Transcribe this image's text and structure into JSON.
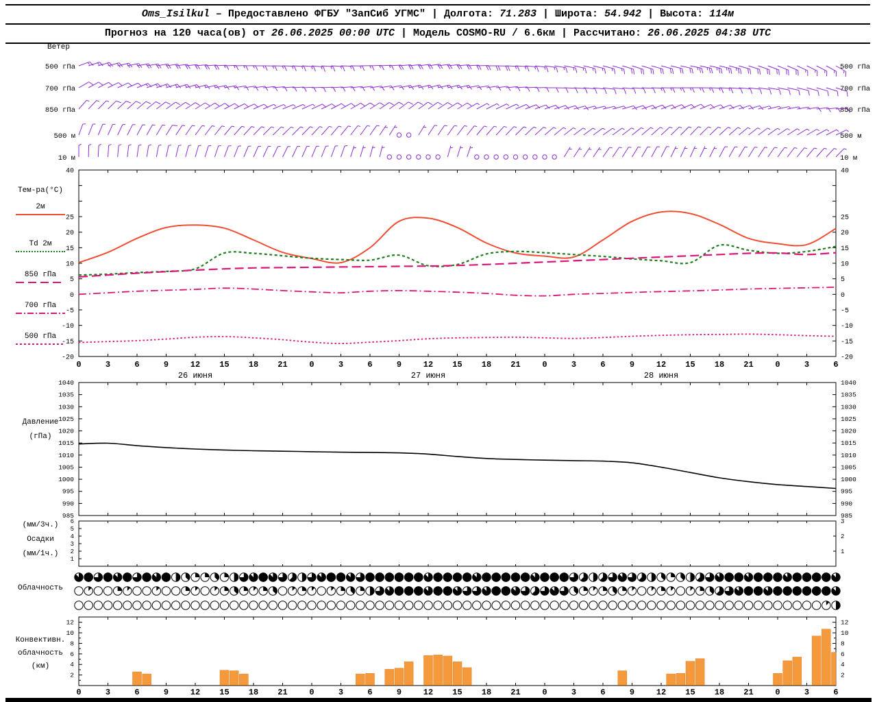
{
  "header": {
    "row1": [
      {
        "text": "Oms_Isilkul",
        "style": "italic"
      },
      {
        "text": " – Предоставлено ФГБУ \"ЗапСиб УГМС\"  |  Долгота: "
      },
      {
        "text": "71.283",
        "style": "italic"
      },
      {
        "text": "  |  Широта: "
      },
      {
        "text": "54.942",
        "style": "italic"
      },
      {
        "text": "  |  Высота: "
      },
      {
        "text": "114м",
        "style": "italic"
      }
    ],
    "row2": [
      {
        "text": "Прогноз на 120 часа(ов) от "
      },
      {
        "text": "26.06.2025 00:00 UTC",
        "style": "italic"
      },
      {
        "text": "  |  Модель "
      },
      {
        "text": "COSMO-RU / 6.6км"
      },
      {
        "text": "  |  Рассчитано: "
      },
      {
        "text": "26.06.2025 04:38 UTC",
        "style": "italic"
      }
    ]
  },
  "labels": {
    "wind_title": "Ветер",
    "temp_title": "Тем-ра(°C)",
    "pressure_title_1": "Давление",
    "pressure_title_2": "(гПа)",
    "precip_1": "(мм/3ч.)",
    "precip_2": "Осадки",
    "precip_3": "(мм/1ч.)",
    "cloud_title": "Облачность",
    "conv_1": "Конвективн.",
    "conv_2": "облачность",
    "conv_3": "(км)"
  },
  "time": {
    "hours": [
      0,
      3,
      6,
      9,
      12,
      15,
      18,
      21,
      24,
      27,
      30,
      33,
      36,
      39,
      42,
      45,
      48,
      51,
      54,
      57,
      60,
      63,
      66,
      69,
      72,
      75,
      78
    ],
    "hour_labels": [
      "0",
      "3",
      "6",
      "9",
      "12",
      "15",
      "18",
      "21",
      "0",
      "3",
      "6",
      "9",
      "12",
      "15",
      "18",
      "21",
      "0",
      "3",
      "6",
      "9",
      "12",
      "15",
      "18",
      "21",
      "0",
      "3",
      "6"
    ],
    "day_labels": [
      {
        "text": "26 июня",
        "t": 12
      },
      {
        "text": "27 июня",
        "t": 36
      },
      {
        "text": "28 июня",
        "t": 60
      }
    ]
  },
  "chart_data": [
    {
      "type": "wind-barbs",
      "title": "Ветер",
      "color": "#8a2fd2",
      "x_hours": [
        0,
        3,
        6,
        9,
        12,
        15,
        18,
        21,
        24,
        27,
        30,
        33,
        36,
        39,
        42,
        45,
        48,
        51,
        54,
        57,
        60,
        63,
        66,
        69,
        72,
        75,
        78
      ],
      "levels": [
        {
          "label": "500 гПа",
          "dir": [
            250,
            255,
            260,
            262,
            265,
            268,
            270,
            272,
            275,
            272,
            268,
            265,
            262,
            265,
            270,
            274,
            278,
            282,
            285,
            288,
            285,
            282,
            284,
            288,
            292,
            296,
            300
          ],
          "speed_ms": [
            18,
            20,
            22,
            22,
            20,
            18,
            18,
            16,
            15,
            16,
            18,
            20,
            22,
            22,
            20,
            18,
            16,
            15,
            18,
            20,
            22,
            24,
            25,
            22,
            20,
            18,
            18
          ]
        },
        {
          "label": "700 гПа",
          "dir": [
            240,
            244,
            248,
            252,
            256,
            260,
            263,
            266,
            268,
            265,
            262,
            258,
            256,
            258,
            262,
            266,
            270,
            274,
            277,
            274,
            271,
            270,
            273,
            277,
            281,
            285,
            288
          ],
          "speed_ms": [
            12,
            13,
            14,
            15,
            15,
            14,
            12,
            11,
            10,
            11,
            13,
            14,
            15,
            14,
            12,
            11,
            10,
            11,
            12,
            13,
            15,
            15,
            14,
            12,
            11,
            10,
            10
          ]
        },
        {
          "label": "850 гПа",
          "dir": [
            222,
            226,
            230,
            234,
            238,
            242,
            246,
            248,
            245,
            241,
            237,
            233,
            235,
            239,
            243,
            247,
            251,
            255,
            257,
            253,
            249,
            246,
            250,
            254,
            258,
            262,
            266
          ],
          "speed_ms": [
            8,
            9,
            10,
            11,
            12,
            11,
            9,
            8,
            9,
            10,
            11,
            12,
            10,
            9,
            8,
            9,
            10,
            9,
            8,
            10,
            11,
            12,
            10,
            9,
            8,
            9,
            10
          ]
        },
        {
          "label": "500 м",
          "dir": [
            200,
            204,
            208,
            212,
            216,
            220,
            224,
            226,
            223,
            219,
            215,
            211,
            213,
            217,
            221,
            225,
            229,
            233,
            235,
            231,
            227,
            224,
            228,
            232,
            236,
            240,
            244
          ],
          "speed_ms": [
            6,
            7,
            8,
            9,
            8,
            7,
            6,
            7,
            8,
            6,
            5,
            0,
            4,
            6,
            7,
            6,
            5,
            6,
            7,
            8,
            6,
            5,
            6,
            7,
            8,
            6,
            6
          ]
        },
        {
          "label": "10 м",
          "dir": [
            180,
            184,
            188,
            192,
            196,
            200,
            204,
            206,
            203,
            199,
            195,
            191,
            193,
            197,
            201,
            205,
            209,
            213,
            215,
            211,
            207,
            204,
            208,
            212,
            216,
            220,
            224
          ],
          "speed_ms": [
            4,
            5,
            5,
            6,
            5,
            4,
            4,
            5,
            5,
            4,
            3,
            0,
            0,
            3,
            0,
            0,
            0,
            3,
            4,
            5,
            4,
            3,
            4,
            5,
            5,
            4,
            4
          ]
        }
      ]
    },
    {
      "type": "line",
      "title": "Тем-ра(°C)",
      "ylim": [
        -20,
        40
      ],
      "yticks": [
        40,
        25,
        20,
        15,
        10,
        5,
        0,
        -5,
        -10,
        -15,
        -20
      ],
      "x_hours": [
        0,
        3,
        6,
        9,
        12,
        15,
        18,
        21,
        24,
        27,
        30,
        33,
        36,
        39,
        42,
        45,
        48,
        51,
        54,
        57,
        60,
        63,
        66,
        69,
        72,
        75,
        78
      ],
      "series": [
        {
          "name": "2м",
          "color": "#ef4e33",
          "dash": "solid",
          "width": 2,
          "values": [
            10.2,
            13.5,
            18,
            21.5,
            22.3,
            21.3,
            17.5,
            13.5,
            11.5,
            10.2,
            15,
            23.5,
            24.5,
            21.5,
            16.5,
            13.3,
            12.3,
            12,
            17.5,
            23.5,
            26.5,
            26,
            22.5,
            18,
            16.3,
            16,
            21.2
          ]
        },
        {
          "name": "Td 2м",
          "color": "#1e7d1e",
          "dash": "dot",
          "width": 2.2,
          "values": [
            6.2,
            6.5,
            7,
            7.4,
            8.2,
            13.3,
            13.2,
            12.4,
            11.6,
            11.2,
            11,
            12.6,
            9.2,
            9.6,
            13,
            13.8,
            13.4,
            12.8,
            12.2,
            11.4,
            10.8,
            10.2,
            15.8,
            14.2,
            13.2,
            13.8,
            15.4
          ]
        },
        {
          "name": "850 гПа",
          "color": "#d81677",
          "dash": "longdash",
          "width": 2.2,
          "values": [
            5.6,
            6.2,
            6.8,
            7.3,
            7.8,
            8.2,
            8.5,
            8.6,
            8.7,
            8.8,
            8.9,
            9,
            9.1,
            9.3,
            9.6,
            10,
            10.4,
            10.8,
            11.2,
            11.6,
            12,
            12.4,
            12.8,
            13.2,
            13.3,
            12.8,
            13.4
          ]
        },
        {
          "name": "700 гПа",
          "color": "#d81677",
          "dash": "dashdot",
          "width": 1.8,
          "values": [
            0,
            0.5,
            1,
            1.3,
            1.6,
            2,
            1.7,
            1.2,
            0.8,
            0.5,
            1,
            1.2,
            1,
            0.7,
            0.3,
            -0.3,
            -0.5,
            0,
            0.3,
            0.6,
            0.9,
            1.1,
            1.4,
            1.7,
            1.9,
            2.1,
            2.3
          ]
        },
        {
          "name": "500 гПа",
          "color": "#d81677",
          "dash": "dot2",
          "width": 1.8,
          "values": [
            -15.5,
            -15.2,
            -14.9,
            -14.4,
            -13.8,
            -13.6,
            -14,
            -14.6,
            -15.4,
            -15.8,
            -15.4,
            -14.9,
            -14.3,
            -14,
            -13.9,
            -13.8,
            -14,
            -14.2,
            -13.9,
            -13.5,
            -13.2,
            -13,
            -12.9,
            -12.8,
            -13,
            -13.3,
            -13.5
          ]
        }
      ]
    },
    {
      "type": "line",
      "title": "Давление (гПа)",
      "ylim": [
        985,
        1040
      ],
      "yticks": [
        1040,
        1035,
        1030,
        1025,
        1020,
        1015,
        1010,
        1005,
        1000,
        995,
        990,
        985
      ],
      "x_hours": [
        0,
        3,
        6,
        9,
        12,
        15,
        18,
        21,
        24,
        27,
        30,
        33,
        36,
        39,
        42,
        45,
        48,
        51,
        54,
        57,
        60,
        63,
        66,
        69,
        72,
        75,
        78
      ],
      "series": [
        {
          "name": "Давление",
          "color": "#000000",
          "dash": "solid",
          "width": 1.6,
          "values": [
            1014.6,
            1014.9,
            1013.9,
            1013.1,
            1012.5,
            1012.1,
            1011.8,
            1011.6,
            1011.4,
            1011.2,
            1011.1,
            1010.9,
            1010.4,
            1009.4,
            1008.6,
            1008.2,
            1007.9,
            1007.7,
            1007.5,
            1006.8,
            1005,
            1002.8,
            1000.6,
            999,
            997.8,
            997,
            996.2
          ]
        }
      ]
    },
    {
      "type": "bar",
      "title": "Осадки (мм/3ч., мм/1ч.)",
      "ylim": [
        0,
        6
      ],
      "yticks_left": [
        6,
        5,
        4,
        3,
        2,
        1
      ],
      "yticks_right": [
        3,
        2,
        1
      ],
      "bars": []
    },
    {
      "type": "cloud-symbols",
      "title": "Облачность",
      "rows_octas": [
        "7868786878432232467876546788768888887888878888878886545676543234567887888788887",
        "0100210010021012321230121012324678887887667887656763212321012101235678878888887",
        "0000000000000000000000000000000000000000000000000000000000000000000000000000014"
      ]
    },
    {
      "type": "bar",
      "title": "Конвективная облачность (км)",
      "color": "#f5993d",
      "stroke": "#e07f20",
      "ylim": [
        0,
        13
      ],
      "yticks": [
        12,
        10,
        8,
        6,
        4,
        2
      ],
      "bars": [
        [
          6,
          2.6
        ],
        [
          7,
          2.2
        ],
        [
          15,
          2.9
        ],
        [
          16,
          2.8
        ],
        [
          17,
          2.2
        ],
        [
          29,
          2.2
        ],
        [
          30,
          2.3
        ],
        [
          32,
          3.1
        ],
        [
          33,
          3.3
        ],
        [
          34,
          4.5
        ],
        [
          36,
          5.7
        ],
        [
          37,
          5.8
        ],
        [
          38,
          5.6
        ],
        [
          39,
          4.5
        ],
        [
          40,
          3.4
        ],
        [
          56,
          2.8
        ],
        [
          61,
          2.2
        ],
        [
          62,
          2.3
        ],
        [
          63,
          4.6
        ],
        [
          64,
          5.1
        ],
        [
          72,
          2.3
        ],
        [
          73,
          4.7
        ],
        [
          74,
          5.4
        ],
        [
          76,
          9.4
        ],
        [
          77,
          10.7
        ],
        [
          78,
          6.3
        ]
      ]
    }
  ]
}
